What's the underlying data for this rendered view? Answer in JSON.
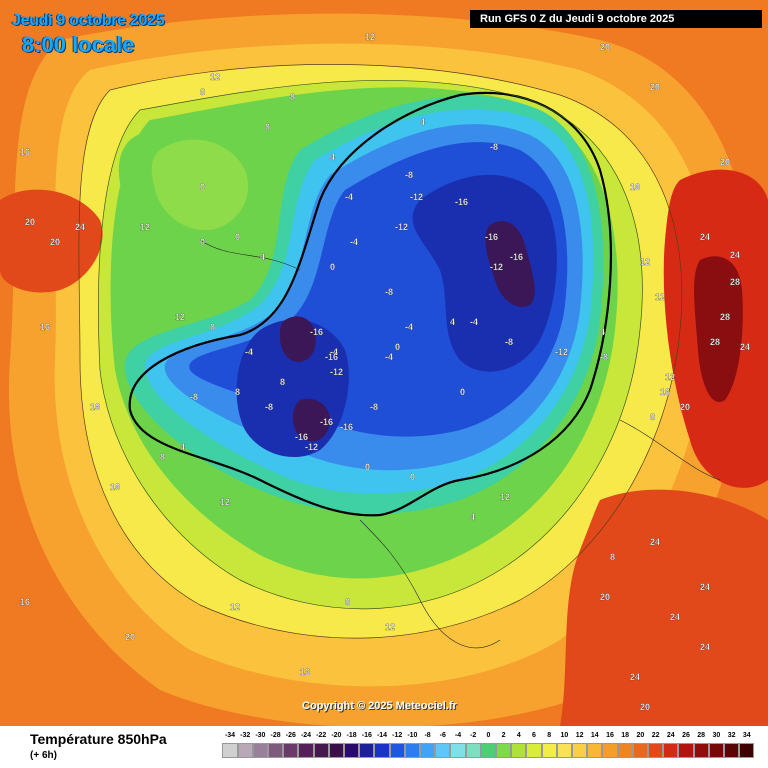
{
  "header": {
    "date_line": "Jeudi 9 octobre 2025",
    "time_line": "8:00 locale",
    "run_info": "Run GFS 0 Z du Jeudi 9 octobre 2025"
  },
  "footer": {
    "parameter": "Température 850hPa",
    "forecast_step": "(+ 6h)",
    "copyright": "Copyright © 2025 Meteociel.fr"
  },
  "legend": {
    "values": [
      "-34",
      "-32",
      "-30",
      "-28",
      "-26",
      "-24",
      "-22",
      "-20",
      "-18",
      "-16",
      "-14",
      "-12",
      "-10",
      "-8",
      "-6",
      "-4",
      "-2",
      "0",
      "2",
      "4",
      "6",
      "8",
      "10",
      "12",
      "14",
      "16",
      "18",
      "20",
      "22",
      "24",
      "26",
      "28",
      "30",
      "32",
      "34"
    ],
    "colors": [
      "#d0d0d0",
      "#b8a8b8",
      "#9a7f9a",
      "#7e5a7e",
      "#6a3a6a",
      "#55205a",
      "#46164e",
      "#3a0f4a",
      "#2a0a6a",
      "#1f1f9a",
      "#1a34c8",
      "#1f55e0",
      "#2d7cf0",
      "#41a3f5",
      "#5ec7f5",
      "#7fe0e8",
      "#7bdfc0",
      "#4fcf73",
      "#7fd94a",
      "#aee23a",
      "#d9ec3a",
      "#f2ee45",
      "#fbe155",
      "#fbcf45",
      "#f7b835",
      "#f39e2a",
      "#ef8423",
      "#ea681e",
      "#e1481a",
      "#d22a16",
      "#b41410",
      "#920c0c",
      "#760808",
      "#5a0505",
      "#3d0303"
    ]
  },
  "map": {
    "temperature_labels": [
      "20",
      "16",
      "12",
      "8",
      "4",
      "0",
      "-4",
      "-8",
      "-12",
      "-16",
      "24",
      "28"
    ],
    "colors": {
      "warm_outer": "#f07a22",
      "orange": "#f7a22e",
      "light_orange": "#fbc23e",
      "yellow": "#f7e94a",
      "yellow_green": "#c9e63b",
      "green": "#6dd34a",
      "aqua": "#3fd0a4",
      "cyan": "#3ec4ee",
      "light_blue": "#3a8cec",
      "blue": "#1f4fd6",
      "dark_blue": "#1a2fb0",
      "purple": "#3b1758",
      "hot_red": "#d72a15",
      "very_hot": "#8a0d10"
    }
  }
}
